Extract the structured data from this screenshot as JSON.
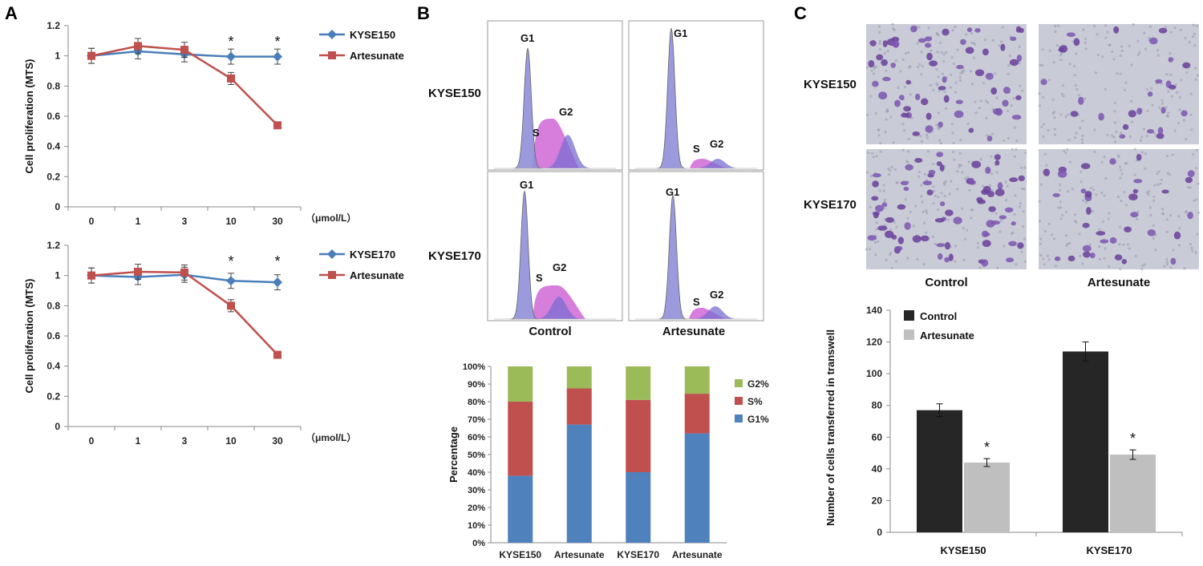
{
  "panels": {
    "a": "A",
    "b": "B",
    "c": "C"
  },
  "chart_data": [
    {
      "id": "A-top",
      "type": "line",
      "categories": [
        "0",
        "1",
        "3",
        "10",
        "30"
      ],
      "unit_label": "（μmol/L）",
      "ylabel": "Cell proliferation (MTS)",
      "ylim": [
        0,
        1.2
      ],
      "yticks": [
        "0",
        "0.2",
        "0.4",
        "0.6",
        "0.8",
        "1",
        "1.2"
      ],
      "significance": [
        "",
        "",
        "",
        "*",
        "*"
      ],
      "series": [
        {
          "name": "KYSE150",
          "color": "#4a7ebb",
          "marker": "diamond",
          "values": [
            1.0,
            1.03,
            1.01,
            0.995,
            0.995
          ],
          "errors": [
            0.05,
            0.05,
            0.05,
            0.05,
            0.05
          ]
        },
        {
          "name": "Artesunate",
          "color": "#c0504d",
          "marker": "square",
          "values": [
            1.0,
            1.065,
            1.04,
            0.85,
            0.54
          ],
          "errors": [
            0.05,
            0.05,
            0.05,
            0.04,
            0.02
          ]
        }
      ]
    },
    {
      "id": "A-bottom",
      "type": "line",
      "categories": [
        "0",
        "1",
        "3",
        "10",
        "30"
      ],
      "unit_label": "（μmol/L）",
      "ylabel": "Cell proliferation (MTS)",
      "ylim": [
        0,
        1.2
      ],
      "yticks": [
        "0",
        "0.2",
        "0.4",
        "0.6",
        "0.8",
        "1",
        "1.2"
      ],
      "significance": [
        "",
        "",
        "",
        "*",
        "*"
      ],
      "series": [
        {
          "name": "KYSE170",
          "color": "#4a7ebb",
          "marker": "diamond",
          "values": [
            1.0,
            0.99,
            1.005,
            0.965,
            0.955
          ],
          "errors": [
            0.05,
            0.05,
            0.05,
            0.05,
            0.05
          ]
        },
        {
          "name": "Artesunate",
          "color": "#c0504d",
          "marker": "square",
          "values": [
            1.0,
            1.025,
            1.02,
            0.8,
            0.475
          ],
          "errors": [
            0.05,
            0.05,
            0.05,
            0.04,
            0.02
          ]
        }
      ]
    },
    {
      "id": "B-histograms",
      "type": "histogram",
      "rows": [
        "KYSE150",
        "KYSE170"
      ],
      "cols": [
        "Control",
        "Artesunate"
      ],
      "peak_labels": {
        "g1": "G1",
        "s": "S",
        "g2": "G2"
      }
    },
    {
      "id": "B-stacked",
      "type": "stacked-bar",
      "categories": [
        "KYSE150",
        "Artesunate",
        "KYSE170",
        "Artesunate"
      ],
      "ylabel": "Percentage",
      "yticks": [
        "0%",
        "10%",
        "20%",
        "30%",
        "40%",
        "50%",
        "60%",
        "70%",
        "80%",
        "90%",
        "100%"
      ],
      "series": [
        {
          "name": "G1%",
          "color": "#4f81bd",
          "values": [
            38,
            67,
            40,
            62
          ]
        },
        {
          "name": "S%",
          "color": "#c0504d",
          "values": [
            42,
            20.5,
            41,
            22.5
          ]
        },
        {
          "name": "G2%",
          "color": "#9bbb59",
          "values": [
            20,
            12.5,
            19,
            15.5
          ]
        }
      ]
    },
    {
      "id": "C-micrographs",
      "type": "image-grid",
      "rows": [
        "KYSE150",
        "KYSE170"
      ],
      "cols": [
        "Control",
        "Artesunate"
      ]
    },
    {
      "id": "C-bars",
      "type": "bar",
      "categories": [
        "KYSE150",
        "KYSE170"
      ],
      "ylabel": "Number of cells transferred in transwell",
      "ylim": [
        0,
        140
      ],
      "yticks": [
        "0",
        "20",
        "40",
        "60",
        "80",
        "100",
        "120",
        "140"
      ],
      "significance": "*",
      "series": [
        {
          "name": "Control",
          "color": "#262626",
          "values": [
            77,
            114
          ],
          "errors": [
            4,
            6
          ]
        },
        {
          "name": "Artesunate",
          "color": "#bfbfbf",
          "values": [
            44,
            49
          ],
          "errors": [
            2.5,
            3
          ]
        }
      ]
    }
  ]
}
